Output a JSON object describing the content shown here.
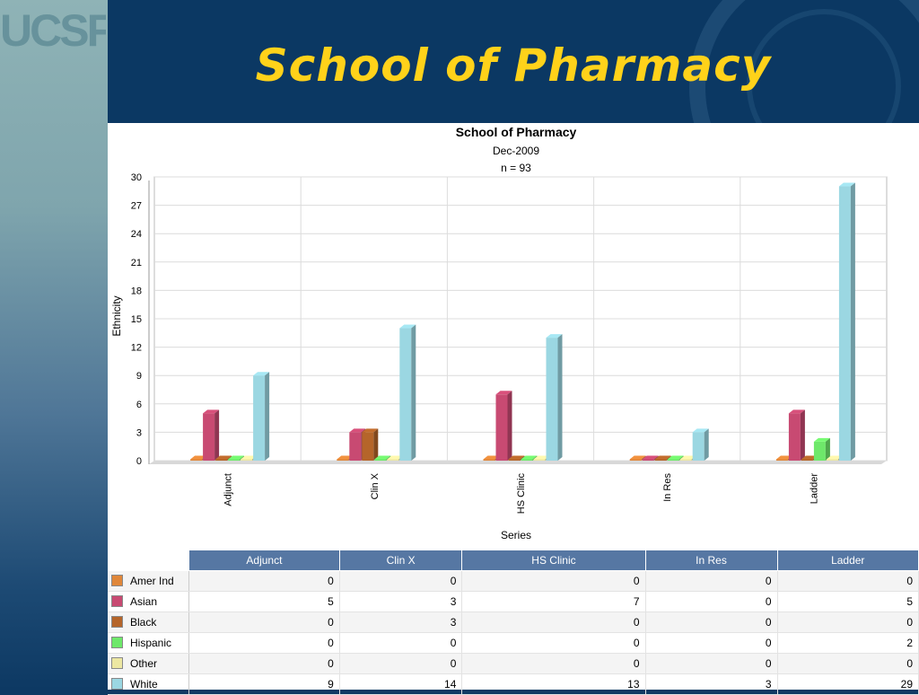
{
  "logo_text": "UCSF",
  "slide_title": "School of Pharmacy",
  "chart_data": {
    "type": "bar",
    "title": "School of Pharmacy",
    "subtitle": "Dec-2009",
    "note": "n = 93",
    "xlabel": "Series",
    "ylabel": "Ethnicity",
    "ylim": [
      0,
      30
    ],
    "yticks": [
      0,
      3,
      6,
      9,
      12,
      15,
      18,
      21,
      24,
      27,
      30
    ],
    "grid": true,
    "categories": [
      "Adjunct",
      "Clin X",
      "HS Clinic",
      "In Res",
      "Ladder"
    ],
    "series": [
      {
        "name": "Amer Ind",
        "color": "#e0873a",
        "values": [
          0,
          0,
          0,
          0,
          0
        ]
      },
      {
        "name": "Asian",
        "color": "#c84a72",
        "values": [
          5,
          3,
          7,
          0,
          5
        ]
      },
      {
        "name": "Black",
        "color": "#b5652a",
        "values": [
          0,
          3,
          0,
          0,
          0
        ]
      },
      {
        "name": "Hispanic",
        "color": "#6ee86a",
        "values": [
          0,
          0,
          0,
          0,
          2
        ]
      },
      {
        "name": "Other",
        "color": "#ece7a2",
        "values": [
          0,
          0,
          0,
          0,
          0
        ]
      },
      {
        "name": "White",
        "color": "#9bd7e2",
        "values": [
          9,
          14,
          13,
          3,
          29
        ]
      }
    ]
  }
}
